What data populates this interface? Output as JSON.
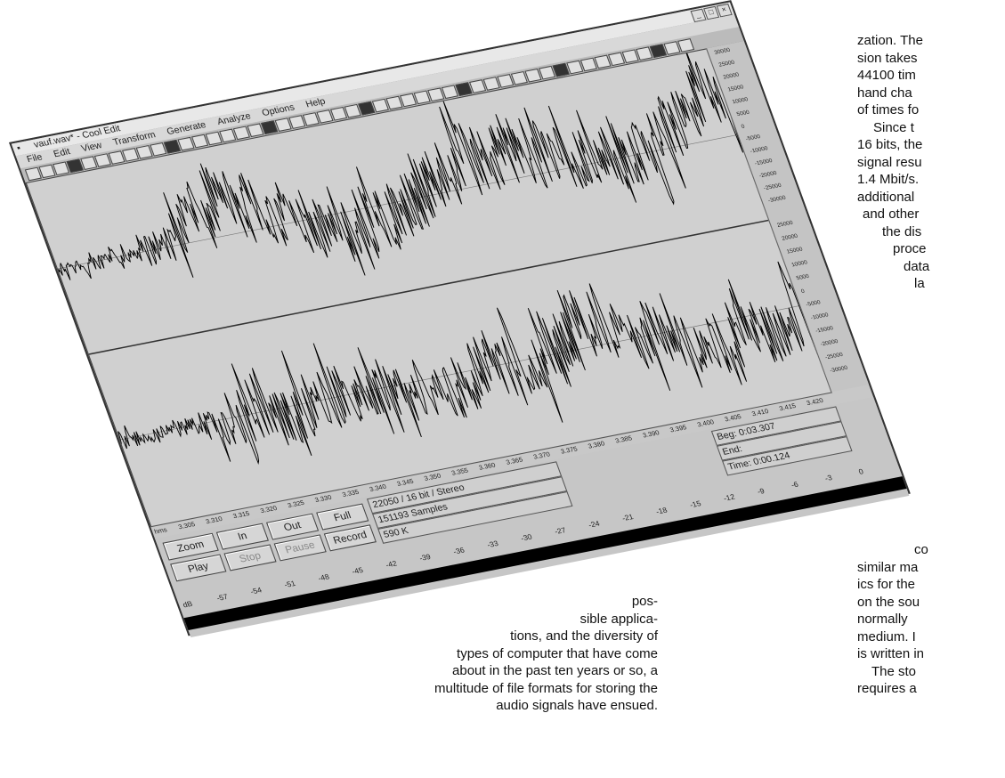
{
  "window": {
    "title": "vauf.wav* - Cool Edit",
    "menu": [
      "File",
      "Edit",
      "View",
      "Transform",
      "Generate",
      "Analyze",
      "Options",
      "Help"
    ]
  },
  "amplitude_scale_top": [
    "30000",
    "25000",
    "20000",
    "15000",
    "10000",
    "5000",
    "0",
    "-5000",
    "-10000",
    "-15000",
    "-20000",
    "-25000",
    "-30000"
  ],
  "amplitude_scale_bottom": [
    "25000",
    "20000",
    "15000",
    "10000",
    "5000",
    "0",
    "-5000",
    "-10000",
    "-15000",
    "-20000",
    "-25000",
    "-30000"
  ],
  "time_ruler": {
    "unit": "hms",
    "ticks": [
      "3.305",
      "3.310",
      "3.315",
      "3.320",
      "3.325",
      "3.330",
      "3.335",
      "3.340",
      "3.345",
      "3.350",
      "3.355",
      "3.360",
      "3.365",
      "3.370",
      "3.375",
      "3.380",
      "3.385",
      "3.390",
      "3.395",
      "3.400",
      "3.405",
      "3.410",
      "3.415",
      "3.420"
    ]
  },
  "transport": {
    "zoom": "Zoom",
    "in": "In",
    "out": "Out",
    "full": "Full",
    "play": "Play",
    "stop": "Stop",
    "pause": "Pause",
    "record": "Record"
  },
  "file_info": {
    "format": "22050 / 16 bit / Stereo",
    "samples": "151193 Samples",
    "size": "590 K"
  },
  "selection": {
    "begin": "Beg: 0:03.307",
    "end": "End:",
    "time": "Time: 0:00.124"
  },
  "meter_scale": [
    "dB",
    "-57",
    "-54",
    "-51",
    "-48",
    "-45",
    "-42",
    "-39",
    "-36",
    "-33",
    "-30",
    "-27",
    "-24",
    "-21",
    "-18",
    "-15",
    "-12",
    "-9",
    "-6",
    "-3",
    "0"
  ],
  "text_right_top": [
    "zation. The",
    "sion takes",
    "44100 tim",
    "hand cha",
    "of times fo",
    "Since t",
    "16 bits, the",
    "signal resu",
    "1.4 Mbit/s.",
    "additional",
    "and other",
    "the dis",
    "proce",
    "data",
    "la"
  ],
  "text_right_bottom": [
    "co",
    "similar ma",
    "ics for the",
    "on the sou",
    "normally",
    "medium. I",
    "is written in",
    "The sto",
    "requires a"
  ],
  "text_left": [
    "pos-",
    "sible applica-",
    "tions, and the diversity of",
    "types of computer that have come",
    "about in the past ten years or so, a",
    "multitude of file formats for storing the",
    "audio signals have ensued."
  ]
}
